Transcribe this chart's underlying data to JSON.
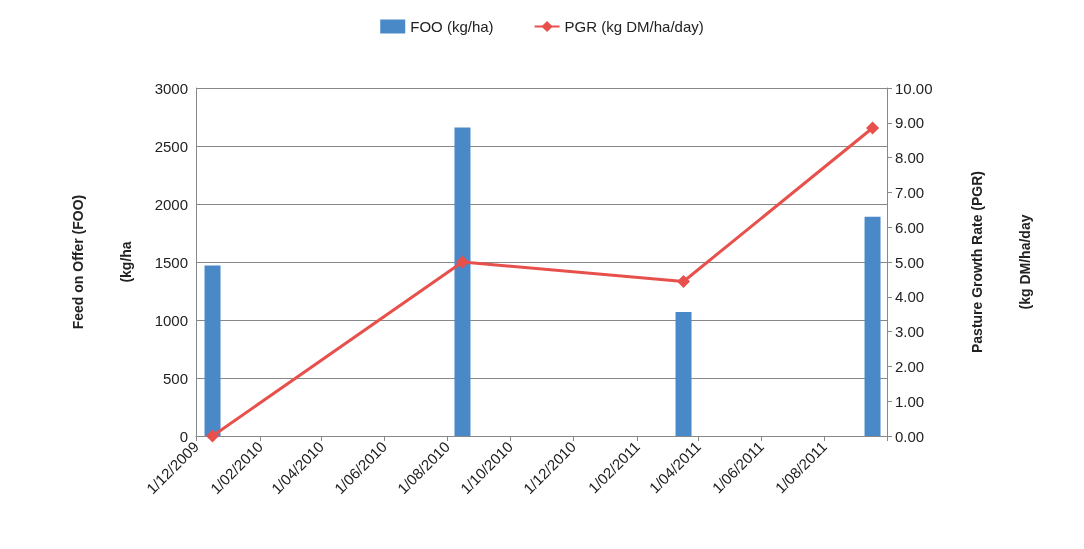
{
  "chart_data": {
    "type": "bar",
    "xlabel": null,
    "ylabel": "Feed on Offer (FOO)\n\n\n(kg/ha",
    "y2label": "Pasture Growth Rate (PGR)\n\n\n(kg DM/ha/day",
    "x": [
      "2009-12-17",
      "2010-08-16",
      "2011-03-18",
      "2011-09-17"
    ],
    "series": [
      {
        "name": "FOO (kg/ha)",
        "color": "#4a89c8",
        "values": [
          1470,
          2660,
          1070,
          1890
        ]
      },
      {
        "name": "PGR (kg DM/ha/day)",
        "type": "line",
        "axis": "y2",
        "color": "#e8504c",
        "marker": "diamond",
        "values": [
          0.0,
          5.0,
          4.44,
          8.85
        ]
      }
    ],
    "xlim": [
      "2009-12-01",
      "2011-10-01"
    ],
    "xticks": [
      {
        "value": "2009-12-01",
        "label": "1/12/2009"
      },
      {
        "value": "2010-02-01",
        "label": "1/02/2010"
      },
      {
        "value": "2010-04-01",
        "label": "1/04/2010"
      },
      {
        "value": "2010-06-01",
        "label": "1/06/2010"
      },
      {
        "value": "2010-08-01",
        "label": "1/08/2010"
      },
      {
        "value": "2010-10-01",
        "label": "1/10/2010"
      },
      {
        "value": "2010-12-01",
        "label": "1/12/2010"
      },
      {
        "value": "2011-02-01",
        "label": "1/02/2011"
      },
      {
        "value": "2011-04-01",
        "label": "1/04/2011"
      },
      {
        "value": "2011-06-01",
        "label": "1/06/2011"
      },
      {
        "value": "2011-08-01",
        "label": "1/08/2011"
      },
      {
        "value": "2011-10-01",
        "label": null
      }
    ],
    "ylim": [
      0,
      3000
    ],
    "yticks": [
      0,
      500,
      1000,
      1500,
      2000,
      2500,
      3000
    ],
    "y2lim": [
      0,
      10
    ],
    "y2ticks": [
      {
        "value": 0,
        "label": "0.00"
      },
      {
        "value": 1,
        "label": "1.00"
      },
      {
        "value": 2,
        "label": "2.00"
      },
      {
        "value": 3,
        "label": "3.00"
      },
      {
        "value": 4,
        "label": "4.00"
      },
      {
        "value": 5,
        "label": "5.00"
      },
      {
        "value": 6,
        "label": "6.00"
      },
      {
        "value": 7,
        "label": "7.00"
      },
      {
        "value": 8,
        "label": "8.00"
      },
      {
        "value": 9,
        "label": "9.00"
      },
      {
        "value": 10,
        "label": "10.00"
      }
    ],
    "grid": "y",
    "legend": "top"
  }
}
